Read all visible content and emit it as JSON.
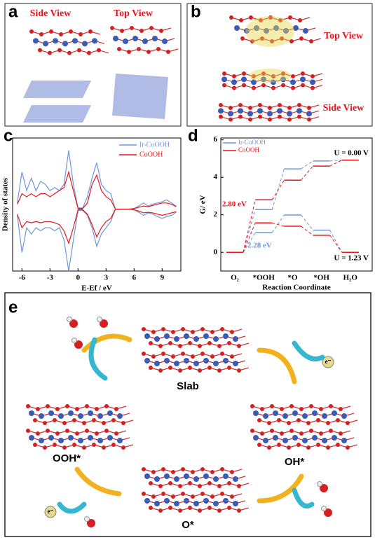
{
  "panels": {
    "a": {
      "label": "a",
      "side_view": "Side View",
      "top_view": "Top View"
    },
    "b": {
      "label": "b",
      "top_view": "Top View",
      "side_view": "Side View"
    },
    "e": {
      "label": "e",
      "slab": "Slab",
      "ooh": "OOH*",
      "oh": "OH*",
      "o": "O*",
      "electron": "e⁻"
    }
  },
  "chart_data": [
    {
      "type": "line",
      "label": "c",
      "xlabel": "E-Ef / eV",
      "ylabel": "Density of states",
      "xlim": [
        -7,
        11
      ],
      "xticks": [
        -6,
        -3,
        0,
        3,
        6,
        9
      ],
      "ylim": [
        -1,
        1.15
      ],
      "x": [
        -6.5,
        -6,
        -5.5,
        -5,
        -4.5,
        -4,
        -3.5,
        -3,
        -2.5,
        -2,
        -1.5,
        -1,
        -0.5,
        0,
        0.5,
        1,
        1.5,
        2,
        2.5,
        3,
        3.5,
        4,
        4.5,
        5,
        5.5,
        6,
        6.5,
        7,
        7.5,
        8,
        8.5,
        9,
        9.5,
        10,
        10.5
      ],
      "series": [
        {
          "name": "Ir-CoOOH",
          "color": "#6f96d8",
          "values": [
            0.1,
            0.6,
            0.3,
            0.5,
            0.3,
            0.45,
            0.4,
            0.3,
            0.35,
            0.3,
            0.4,
            0.95,
            0.4,
            0.02,
            0.02,
            0.2,
            0.5,
            0.75,
            0.4,
            0.3,
            0.25,
            0,
            0,
            0,
            0,
            0.01,
            0.05,
            0.1,
            0.05,
            0.08,
            0.1,
            0.12,
            0.15,
            0.1,
            0.05
          ],
          "values_down": [
            -0.1,
            -0.7,
            -0.3,
            -0.4,
            -0.3,
            -0.35,
            -0.3,
            -0.3,
            -0.35,
            -0.3,
            -0.5,
            -1.0,
            -0.5,
            -0.02,
            -0.02,
            -0.1,
            -0.3,
            -0.6,
            -0.4,
            -0.3,
            -0.2,
            0,
            0,
            0,
            0,
            -0.01,
            -0.05,
            -0.1,
            -0.06,
            -0.08,
            -0.12,
            -0.15,
            -0.12,
            -0.1,
            -0.05
          ]
        },
        {
          "name": "CoOOH",
          "color": "#e8141b",
          "values": [
            0.08,
            0.25,
            0.2,
            0.25,
            0.2,
            0.25,
            0.25,
            0.2,
            0.25,
            0.3,
            0.35,
            0.6,
            0.3,
            0.01,
            0.01,
            0.1,
            0.4,
            0.55,
            0.3,
            0.2,
            0.15,
            0,
            0,
            0,
            0,
            0.01,
            0.03,
            0.05,
            0.04,
            0.06,
            0.08,
            0.1,
            0.1,
            0.08,
            0.04
          ],
          "values_down": [
            -0.08,
            -0.3,
            -0.2,
            -0.22,
            -0.2,
            -0.22,
            -0.2,
            -0.2,
            -0.22,
            -0.25,
            -0.35,
            -0.55,
            -0.3,
            -0.01,
            -0.01,
            -0.08,
            -0.25,
            -0.45,
            -0.3,
            -0.2,
            -0.15,
            0,
            0,
            0,
            0,
            -0.01,
            -0.03,
            -0.06,
            -0.05,
            -0.06,
            -0.08,
            -0.1,
            -0.08,
            -0.06,
            -0.04
          ]
        }
      ]
    },
    {
      "type": "step",
      "label": "d",
      "xlabel": "Reaction Coordinate",
      "ylabel": "G/ eV",
      "categories": [
        "O₂",
        "*OOH",
        "*O",
        "*OH",
        "H₂O"
      ],
      "ylim": [
        -1,
        6.1
      ],
      "yticks": [
        0,
        2,
        4,
        6
      ],
      "series": [
        {
          "name": "Ir-CoOOH",
          "color": "#6f96d8",
          "values": [
            0,
            2.28,
            4.45,
            4.87,
            4.92
          ]
        },
        {
          "name": "CoOOH",
          "color": "#e8141b",
          "values": [
            0,
            2.8,
            3.85,
            4.6,
            4.92
          ]
        },
        {
          "color": "#6f96d8",
          "values": [
            0,
            1.05,
            1.99,
            1.18,
            0
          ]
        },
        {
          "color": "#e8141b",
          "values": [
            0,
            1.57,
            1.39,
            0.91,
            0
          ]
        }
      ],
      "annotations": [
        "U = 0.00 V",
        "U = 1.23 V",
        "2.80 eV",
        "2.28 eV"
      ]
    }
  ]
}
